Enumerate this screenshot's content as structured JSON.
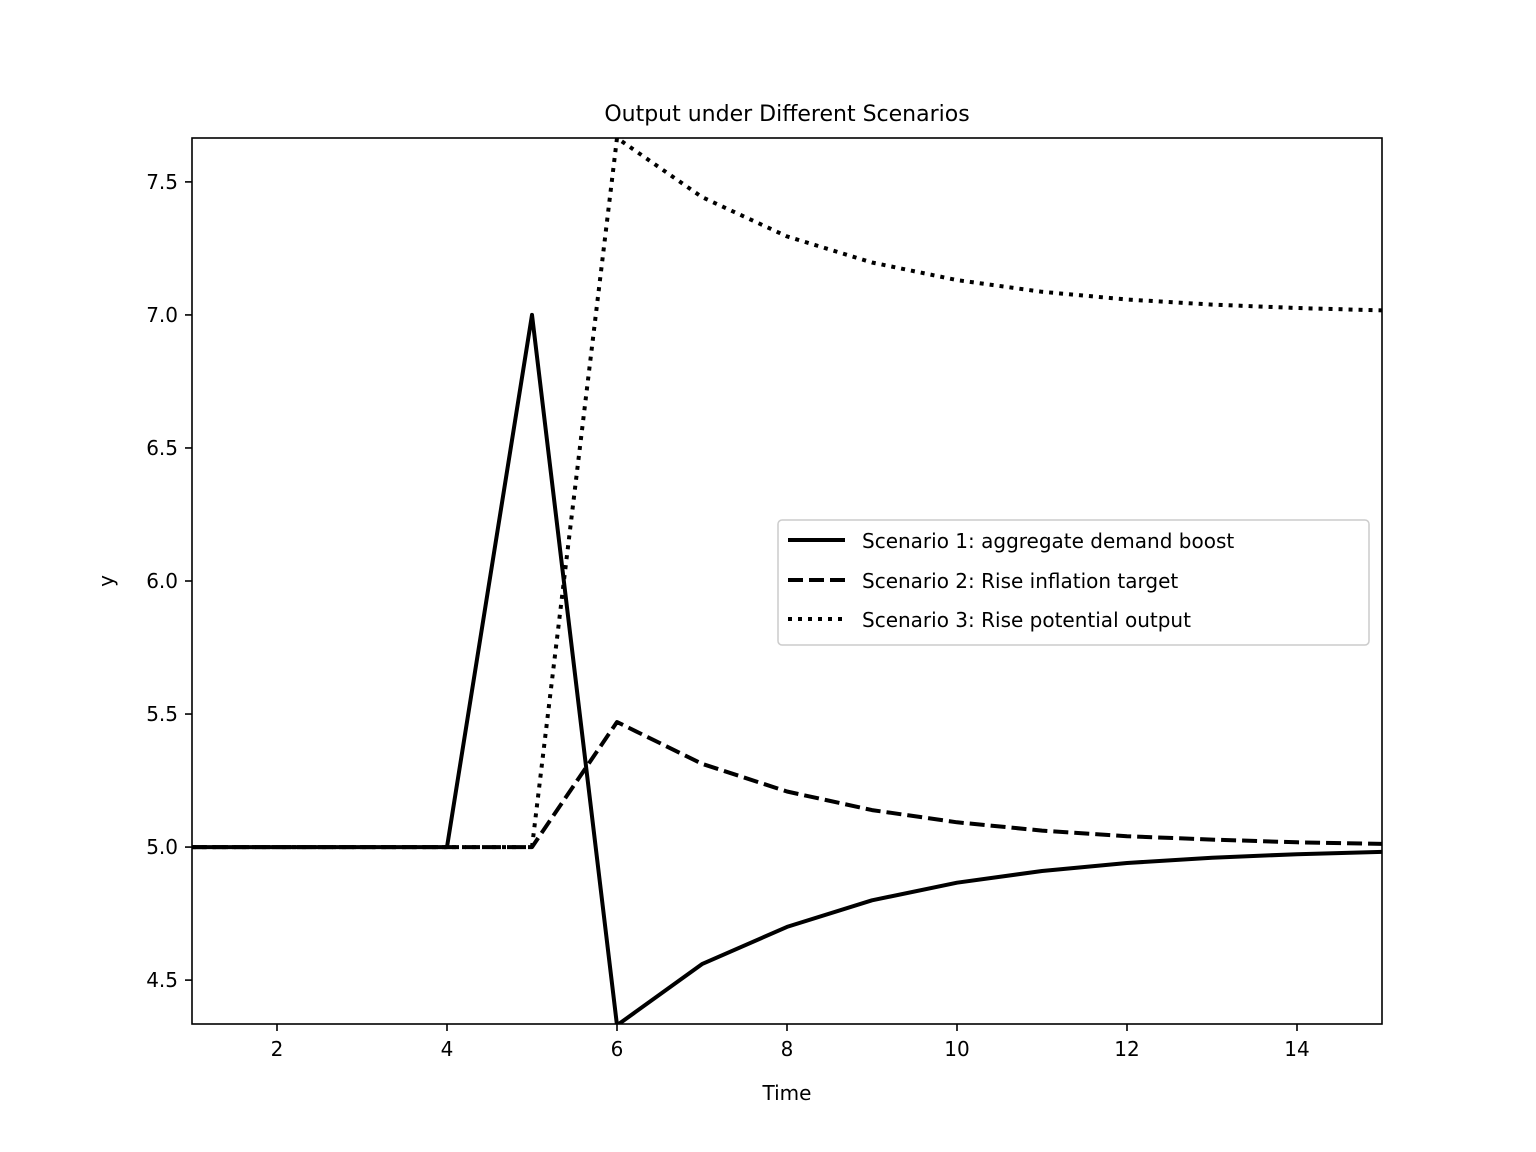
{
  "chart_data": {
    "type": "line",
    "title": "Output under Different Scenarios",
    "xlabel": "Time",
    "ylabel": "y",
    "xlim": [
      1,
      15
    ],
    "ylim": [
      4.335,
      7.665
    ],
    "xticks": [
      2,
      4,
      6,
      8,
      10,
      12,
      14
    ],
    "yticks": [
      4.5,
      5.0,
      5.5,
      6.0,
      6.5,
      7.0,
      7.5
    ],
    "grid": false,
    "legend_position": "center-right",
    "x": [
      1,
      2,
      3,
      4,
      5,
      6,
      7,
      8,
      9,
      10,
      11,
      12,
      13,
      14,
      15
    ],
    "series": [
      {
        "name": "Scenario 1: aggregate demand boost",
        "style": "solid",
        "color": "#000000",
        "values": [
          5.0,
          5.0,
          5.0,
          5.0,
          7.0,
          4.33,
          4.56,
          4.7,
          4.8,
          4.866,
          4.91,
          4.94,
          4.96,
          4.973,
          4.982
        ]
      },
      {
        "name": "Scenario 2: Rise inflation target",
        "style": "dashed",
        "color": "#000000",
        "values": [
          5.0,
          5.0,
          5.0,
          5.0,
          5.0,
          5.47,
          5.313,
          5.209,
          5.139,
          5.093,
          5.062,
          5.041,
          5.028,
          5.018,
          5.012
        ]
      },
      {
        "name": "Scenario 3: Rise potential output",
        "style": "dotted",
        "color": "#000000",
        "values": [
          5.0,
          5.0,
          5.0,
          5.0,
          5.0,
          7.665,
          7.443,
          7.295,
          7.197,
          7.131,
          7.087,
          7.058,
          7.039,
          7.026,
          7.017
        ]
      }
    ]
  }
}
